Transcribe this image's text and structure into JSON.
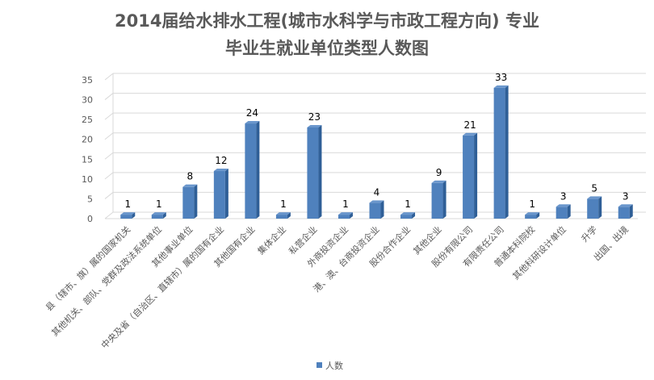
{
  "chart_data": {
    "type": "bar",
    "title_lines": [
      "2014届给水排水工程(城市水科学与市政工程方向) 专业",
      "毕业生就业单位类型人数图"
    ],
    "categories": [
      "县（辖市、旗）属的国家机关",
      "其他机关、部队、党群及政法系统单位",
      "其他事业单位",
      "中央及省（自治区、直辖市）属的国有企业",
      "其他国有企业",
      "集体企业",
      "私营企业",
      "外商投资企业",
      "港、澳、台商投资企业",
      "股份合作企业",
      "其他企业",
      "股份有限公司",
      "有限责任公司",
      "普通本科院校",
      "其他科研设计单位",
      "升学",
      "出国、出境"
    ],
    "series": [
      {
        "name": "人数",
        "values": [
          1,
          1,
          8,
          12,
          24,
          1,
          23,
          1,
          4,
          1,
          9,
          21,
          33,
          1,
          3,
          5,
          3
        ]
      }
    ],
    "yticks": [
      "0",
      "5",
      "10",
      "15",
      "20",
      "25",
      "30",
      "35"
    ],
    "ylim": [
      0,
      35
    ],
    "grid": true,
    "legend_position": "bottom",
    "colors": {
      "bar_front": "#4f81bd",
      "bar_side": "#2f5f97",
      "bar_top": "#6a96cc",
      "grid": "#d9d9d9"
    }
  }
}
